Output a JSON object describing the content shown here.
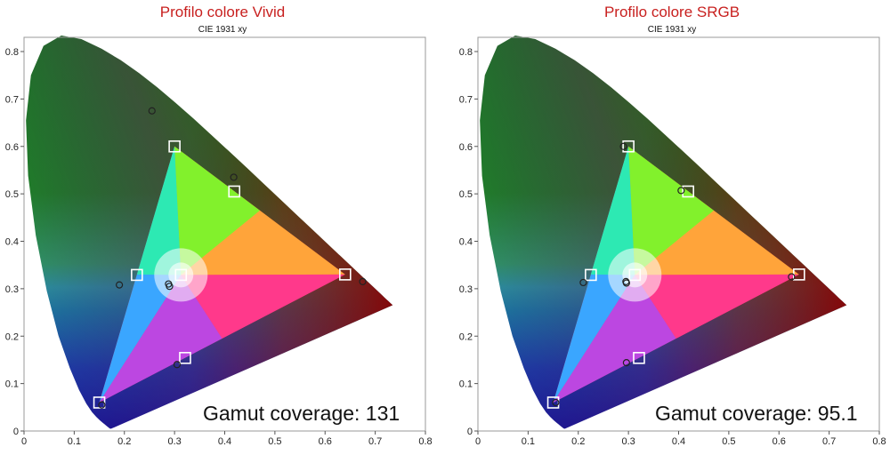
{
  "chart_data": [
    {
      "type": "scatter",
      "title": "Profilo colore Vivid",
      "subtitle": "CIE 1931 xy",
      "xlim": [
        0,
        0.8
      ],
      "ylim": [
        0,
        0.83
      ],
      "xticks": [
        "0",
        "0.1",
        "0.2",
        "0.3",
        "0.4",
        "0.5",
        "0.6",
        "0.7",
        "0.8"
      ],
      "yticks": [
        "0",
        "0.1",
        "0.2",
        "0.3",
        "0.4",
        "0.5",
        "0.6",
        "0.7",
        "0.8"
      ],
      "grid": false,
      "targets": [
        {
          "x": 0.64,
          "y": 0.33
        },
        {
          "x": 0.3,
          "y": 0.6
        },
        {
          "x": 0.15,
          "y": 0.06
        },
        {
          "x": 0.225,
          "y": 0.329
        },
        {
          "x": 0.419,
          "y": 0.505
        },
        {
          "x": 0.321,
          "y": 0.154
        },
        {
          "x": 0.3127,
          "y": 0.329
        }
      ],
      "measured": [
        {
          "x": 0.675,
          "y": 0.315
        },
        {
          "x": 0.255,
          "y": 0.675
        },
        {
          "x": 0.155,
          "y": 0.055
        },
        {
          "x": 0.19,
          "y": 0.308
        },
        {
          "x": 0.418,
          "y": 0.535
        },
        {
          "x": 0.305,
          "y": 0.14
        },
        {
          "x": 0.288,
          "y": 0.31
        },
        {
          "x": 0.29,
          "y": 0.305
        }
      ],
      "annotation": "Gamut coverage: 131"
    },
    {
      "type": "scatter",
      "title": "Profilo colore SRGB",
      "subtitle": "CIE 1931 xy",
      "xlim": [
        0,
        0.8
      ],
      "ylim": [
        0,
        0.83
      ],
      "xticks": [
        "0",
        "0.1",
        "0.2",
        "0.3",
        "0.4",
        "0.5",
        "0.6",
        "0.7",
        "0.8"
      ],
      "yticks": [
        "0",
        "0.1",
        "0.2",
        "0.3",
        "0.4",
        "0.5",
        "0.6",
        "0.7",
        "0.8"
      ],
      "grid": false,
      "targets": [
        {
          "x": 0.64,
          "y": 0.33
        },
        {
          "x": 0.3,
          "y": 0.6
        },
        {
          "x": 0.15,
          "y": 0.06
        },
        {
          "x": 0.225,
          "y": 0.329
        },
        {
          "x": 0.419,
          "y": 0.505
        },
        {
          "x": 0.321,
          "y": 0.154
        },
        {
          "x": 0.3127,
          "y": 0.329
        }
      ],
      "measured": [
        {
          "x": 0.625,
          "y": 0.325
        },
        {
          "x": 0.29,
          "y": 0.6
        },
        {
          "x": 0.155,
          "y": 0.06
        },
        {
          "x": 0.21,
          "y": 0.313
        },
        {
          "x": 0.405,
          "y": 0.507
        },
        {
          "x": 0.296,
          "y": 0.144
        },
        {
          "x": 0.295,
          "y": 0.315
        },
        {
          "x": 0.296,
          "y": 0.312
        }
      ],
      "annotation": "Gamut coverage: 95.1"
    }
  ]
}
